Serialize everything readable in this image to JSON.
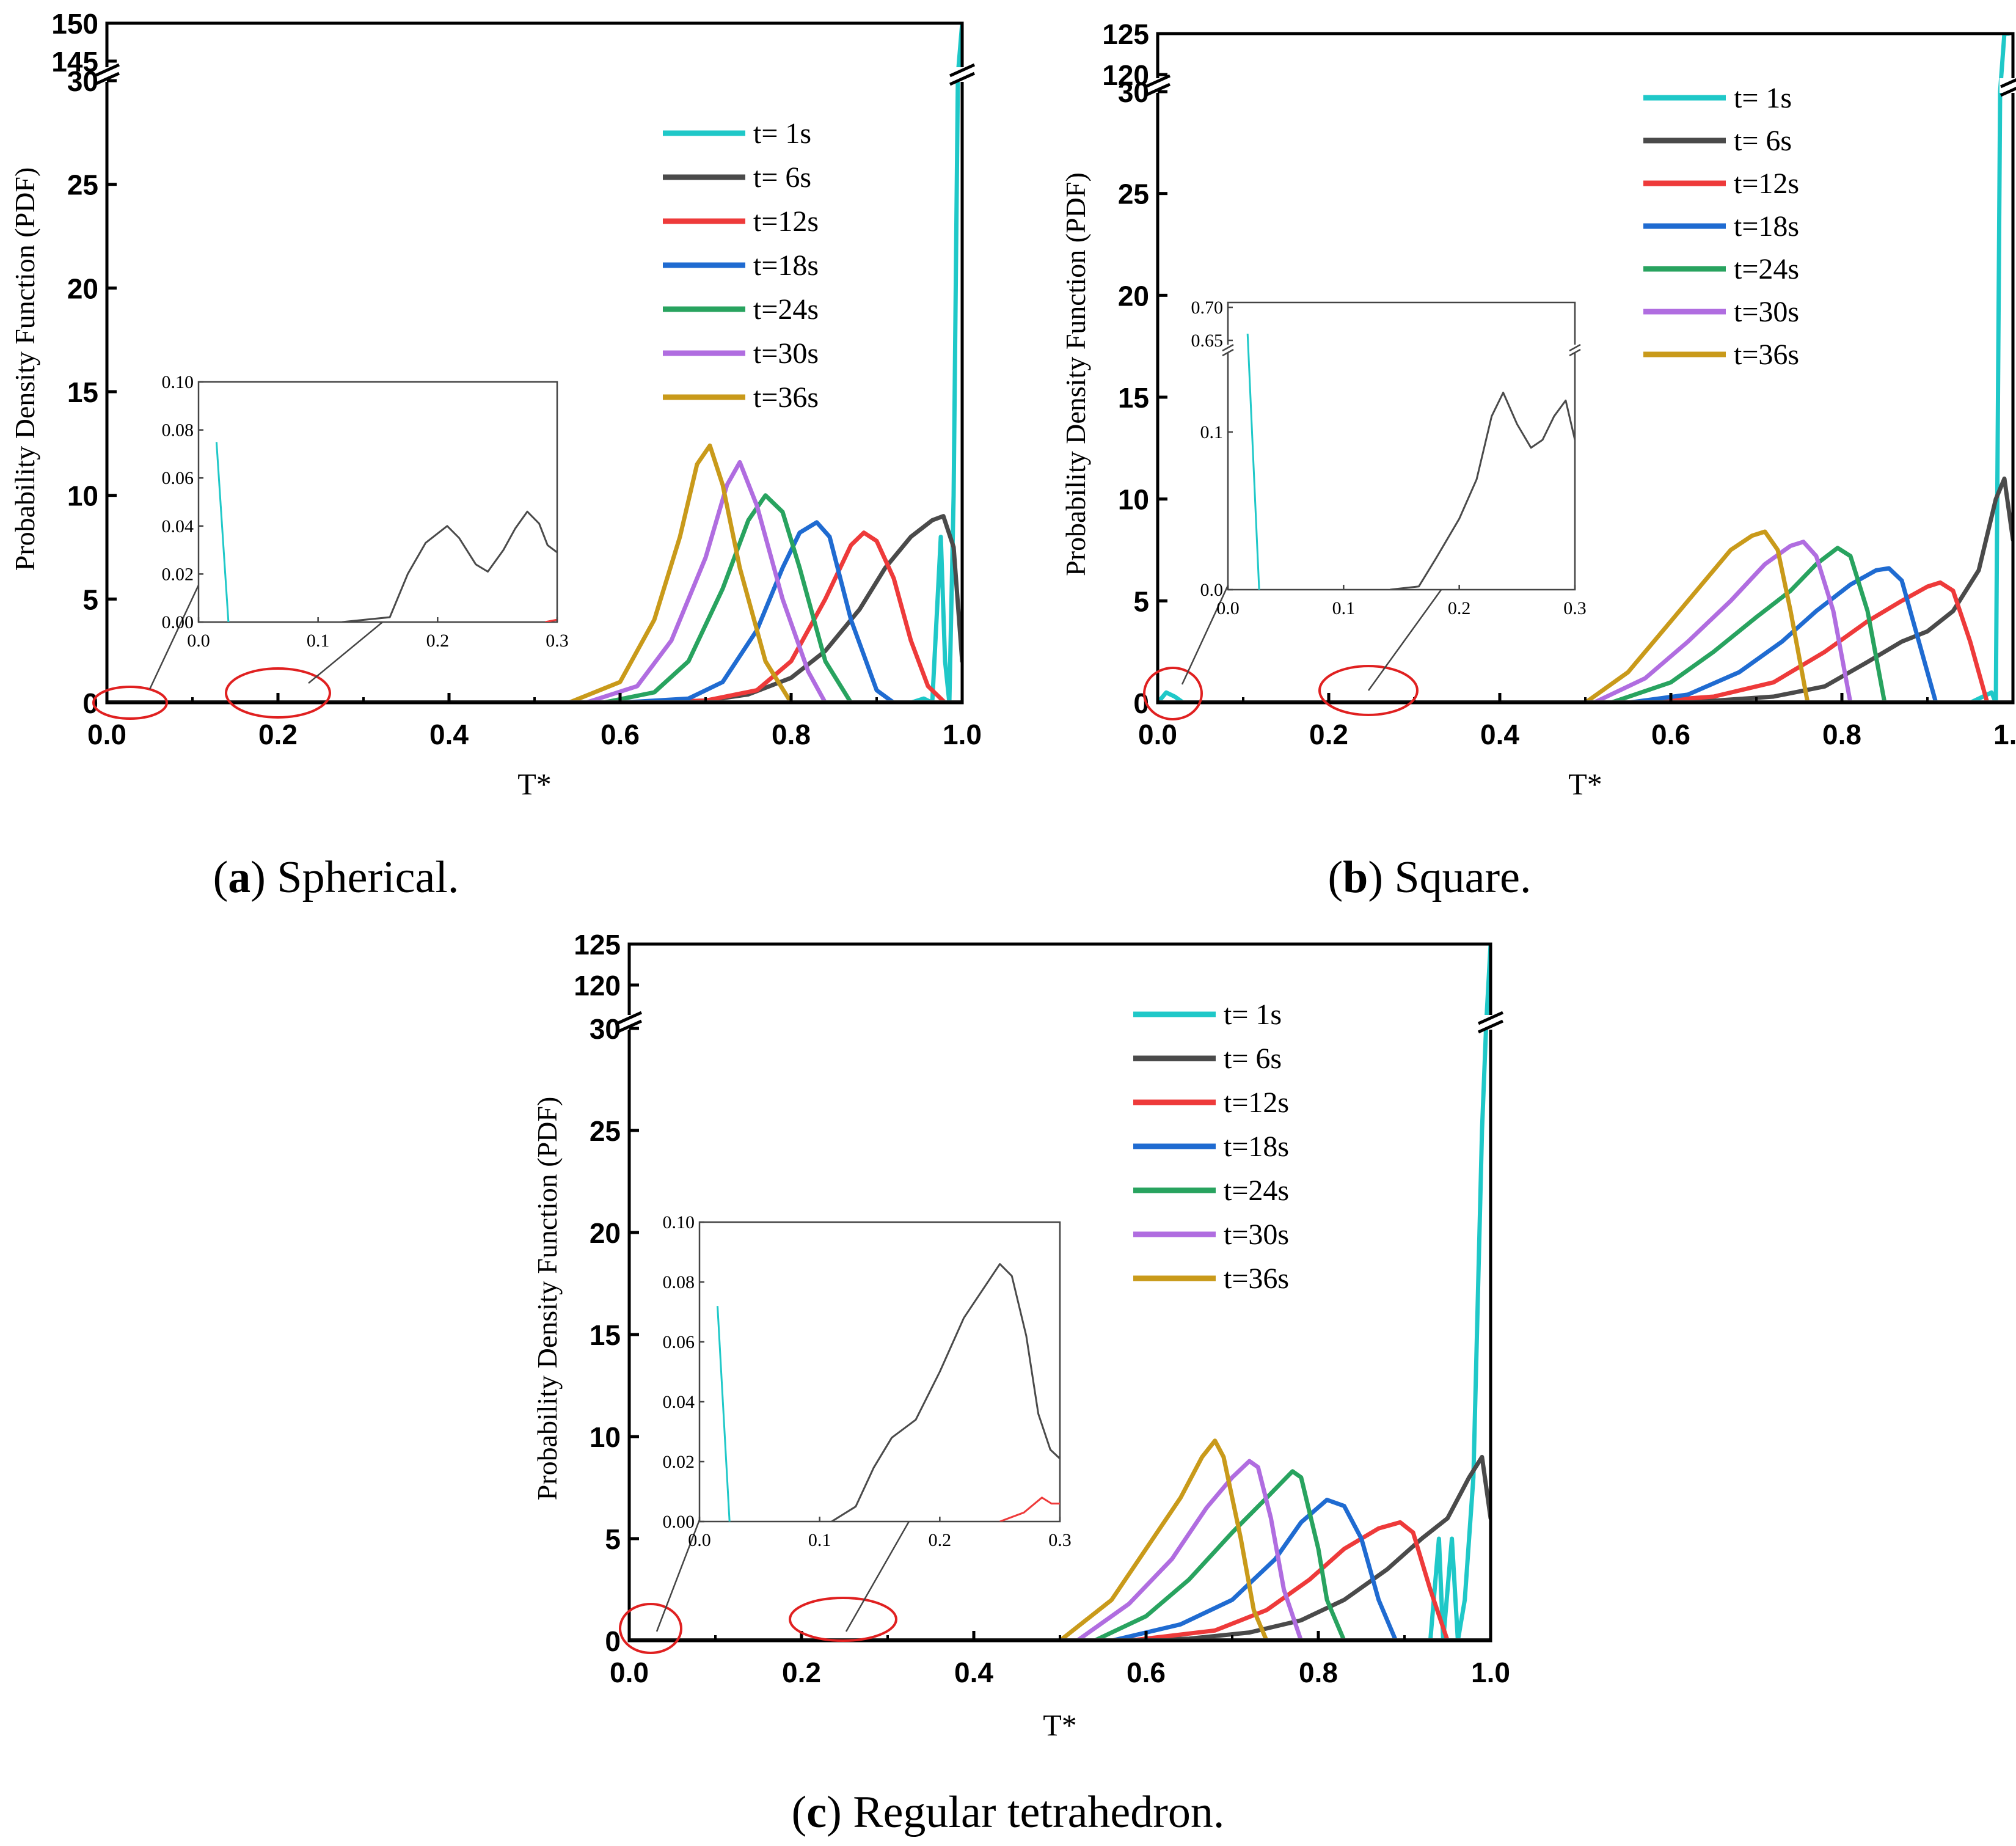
{
  "legend_labels": [
    "t=  1s",
    "t=  6s",
    "t=12s",
    "t=18s",
    "t=24s",
    "t=30s",
    "t=36s"
  ],
  "chart_data": [
    {
      "type": "line",
      "panel": "a",
      "caption_letter": "a",
      "caption_text": " Spherical.",
      "xlabel": "T*",
      "ylabel": "Probability Density Function (PDF)",
      "xlim": [
        0,
        1
      ],
      "ylim_lower": [
        0,
        30
      ],
      "ylim_upper": [
        145,
        150
      ],
      "xticks": [
        "0.0",
        "0.2",
        "0.4",
        "0.6",
        "0.8",
        "1.0"
      ],
      "yticks_lower": [
        "0",
        "5",
        "10",
        "15",
        "20",
        "25",
        "30"
      ],
      "yticks_upper": [
        "145",
        "150"
      ],
      "series": [
        {
          "name": "t=  1s",
          "color": "#1fc8c8",
          "x": [
            0.9,
            0.94,
            0.955,
            0.965,
            0.975,
            0.98,
            0.985,
            0.99,
            0.995,
            1.0
          ],
          "y": [
            0,
            0,
            0.2,
            0,
            8,
            2,
            0,
            10,
            40,
            150
          ]
        },
        {
          "name": "t=  6s",
          "color": "#4a4a4a",
          "x": [
            0.6,
            0.7,
            0.75,
            0.8,
            0.84,
            0.88,
            0.91,
            0.94,
            0.965,
            0.978,
            0.99,
            1.0
          ],
          "y": [
            0,
            0.1,
            0.4,
            1.2,
            2.5,
            4.5,
            6.5,
            8.0,
            8.8,
            9.0,
            7.5,
            2.0
          ]
        },
        {
          "name": "t=12s",
          "color": "#ee3a3a",
          "x": [
            0.6,
            0.7,
            0.76,
            0.8,
            0.84,
            0.87,
            0.885,
            0.9,
            0.92,
            0.94,
            0.96,
            0.98
          ],
          "y": [
            0,
            0.1,
            0.6,
            2.0,
            5.0,
            7.6,
            8.2,
            7.8,
            6.0,
            3.0,
            0.8,
            0
          ]
        },
        {
          "name": "t=18s",
          "color": "#1f6bd1",
          "x": [
            0.6,
            0.68,
            0.72,
            0.76,
            0.79,
            0.81,
            0.83,
            0.845,
            0.87,
            0.9,
            0.92
          ],
          "y": [
            0,
            0.2,
            1.0,
            3.5,
            6.5,
            8.2,
            8.7,
            8.0,
            4.0,
            0.6,
            0
          ]
        },
        {
          "name": "t=24s",
          "color": "#28a35f",
          "x": [
            0.58,
            0.64,
            0.68,
            0.72,
            0.75,
            0.77,
            0.79,
            0.81,
            0.84,
            0.87
          ],
          "y": [
            0,
            0.5,
            2.0,
            5.5,
            8.8,
            10.0,
            9.2,
            6.5,
            2.0,
            0
          ]
        },
        {
          "name": "t=30s",
          "color": "#b06de0",
          "x": [
            0.56,
            0.62,
            0.66,
            0.7,
            0.725,
            0.74,
            0.76,
            0.79,
            0.82,
            0.84
          ],
          "y": [
            0,
            0.8,
            3.0,
            7.0,
            10.5,
            11.6,
            9.5,
            5.0,
            1.5,
            0
          ]
        },
        {
          "name": "t=36s",
          "color": "#c99a1a",
          "x": [
            0.54,
            0.6,
            0.64,
            0.67,
            0.69,
            0.705,
            0.72,
            0.74,
            0.77,
            0.8
          ],
          "y": [
            0,
            1.0,
            4.0,
            8.0,
            11.5,
            12.4,
            10.5,
            6.5,
            2.0,
            0
          ]
        }
      ],
      "inset": {
        "xlim": [
          0,
          0.3
        ],
        "ylim": [
          0,
          0.1
        ],
        "xticks": [
          "0.0",
          "0.1",
          "0.2",
          "0.3"
        ],
        "yticks": [
          "0.00",
          "0.02",
          "0.04",
          "0.06",
          "0.08",
          "0.10"
        ],
        "series": [
          {
            "color": "#1fc8c8",
            "x": [
              0.015,
              0.025
            ],
            "y": [
              0.075,
              0.0
            ]
          },
          {
            "color": "#4a4a4a",
            "x": [
              0.12,
              0.16,
              0.175,
              0.19,
              0.208,
              0.218,
              0.232,
              0.242,
              0.255,
              0.265,
              0.275,
              0.285,
              0.292,
              0.3
            ],
            "y": [
              0,
              0.002,
              0.02,
              0.033,
              0.04,
              0.035,
              0.024,
              0.021,
              0.03,
              0.039,
              0.046,
              0.041,
              0.032,
              0.029
            ]
          },
          {
            "color": "#ee3a3a",
            "x": [
              0.29,
              0.3
            ],
            "y": [
              0,
              0.001
            ]
          }
        ]
      }
    },
    {
      "type": "line",
      "panel": "b",
      "caption_letter": "b",
      "caption_text": " Square.",
      "xlabel": "T*",
      "ylabel": "Probability Density Function (PDF)",
      "xlim": [
        0,
        1
      ],
      "ylim_lower": [
        0,
        30
      ],
      "ylim_upper": [
        120,
        125
      ],
      "xticks": [
        "0.0",
        "0.2",
        "0.4",
        "0.6",
        "0.8",
        "1.0"
      ],
      "yticks_lower": [
        "0",
        "5",
        "10",
        "15",
        "20",
        "25",
        "30"
      ],
      "yticks_upper": [
        "120",
        "125"
      ],
      "series": [
        {
          "name": "t=  1s",
          "color": "#1fc8c8",
          "x": [
            0.0,
            0.01,
            0.02,
            0.03,
            0.95,
            0.975,
            0.98,
            0.985,
            0.99,
            0.995
          ],
          "y": [
            0,
            0.5,
            0.3,
            0,
            0,
            0.5,
            0,
            30,
            125,
            125
          ]
        },
        {
          "name": "t=  6s",
          "color": "#4a4a4a",
          "x": [
            0.55,
            0.65,
            0.72,
            0.78,
            0.83,
            0.87,
            0.9,
            0.93,
            0.96,
            0.98,
            0.99,
            1.0
          ],
          "y": [
            0,
            0.1,
            0.3,
            0.8,
            2.0,
            3.0,
            3.5,
            4.5,
            6.5,
            10.0,
            11.0,
            8.0
          ]
        },
        {
          "name": "t=12s",
          "color": "#ee3a3a",
          "x": [
            0.55,
            0.65,
            0.72,
            0.78,
            0.83,
            0.87,
            0.9,
            0.915,
            0.93,
            0.95,
            0.97
          ],
          "y": [
            0,
            0.3,
            1.0,
            2.5,
            4.0,
            5.0,
            5.7,
            5.9,
            5.5,
            3.0,
            0
          ]
        },
        {
          "name": "t=18s",
          "color": "#1f6bd1",
          "x": [
            0.55,
            0.62,
            0.68,
            0.73,
            0.77,
            0.81,
            0.84,
            0.855,
            0.87,
            0.89,
            0.91
          ],
          "y": [
            0,
            0.4,
            1.5,
            3.0,
            4.5,
            5.8,
            6.5,
            6.6,
            6.0,
            3.0,
            0
          ]
        },
        {
          "name": "t=24s",
          "color": "#28a35f",
          "x": [
            0.53,
            0.6,
            0.65,
            0.7,
            0.74,
            0.77,
            0.795,
            0.81,
            0.83,
            0.85
          ],
          "y": [
            0,
            1.0,
            2.5,
            4.2,
            5.5,
            6.8,
            7.6,
            7.2,
            4.5,
            0
          ]
        },
        {
          "name": "t=30s",
          "color": "#b06de0",
          "x": [
            0.51,
            0.57,
            0.62,
            0.67,
            0.71,
            0.74,
            0.755,
            0.77,
            0.79,
            0.81
          ],
          "y": [
            0,
            1.2,
            3.0,
            5.0,
            6.8,
            7.7,
            7.9,
            7.2,
            4.5,
            0
          ]
        },
        {
          "name": "t=36s",
          "color": "#c99a1a",
          "x": [
            0.5,
            0.55,
            0.6,
            0.64,
            0.67,
            0.695,
            0.71,
            0.725,
            0.74,
            0.76
          ],
          "y": [
            0,
            1.5,
            4.0,
            6.0,
            7.5,
            8.2,
            8.4,
            7.5,
            4.5,
            0
          ]
        }
      ],
      "inset": {
        "xlim": [
          0,
          0.3
        ],
        "ylim_lower": [
          0,
          0.15
        ],
        "ylim_upper": [
          0.65,
          0.7
        ],
        "xticks": [
          "0.0",
          "0.1",
          "0.2",
          "0.3"
        ],
        "yticks_lower": [
          "0.0",
          "0.1"
        ],
        "yticks_upper": [
          "0.65",
          "0.70"
        ],
        "series": [
          {
            "color": "#1fc8c8",
            "x": [
              0.017,
              0.027
            ],
            "y": [
              0.66,
              0.0
            ]
          },
          {
            "color": "#4a4a4a",
            "x": [
              0.14,
              0.165,
              0.18,
              0.2,
              0.215,
              0.228,
              0.238,
              0.25,
              0.262,
              0.272,
              0.282,
              0.292,
              0.3
            ],
            "y": [
              0,
              0.002,
              0.02,
              0.045,
              0.07,
              0.11,
              0.125,
              0.105,
              0.09,
              0.095,
              0.11,
              0.12,
              0.095
            ]
          }
        ]
      }
    },
    {
      "type": "line",
      "panel": "c",
      "caption_letter": "c",
      "caption_text": " Regular tetrahedron.",
      "xlabel": "T*",
      "ylabel": "Probability Density Function (PDF)",
      "xlim": [
        0,
        1
      ],
      "ylim_lower": [
        0,
        30
      ],
      "ylim_upper": [
        120,
        125
      ],
      "xticks": [
        "0.0",
        "0.2",
        "0.4",
        "0.6",
        "0.8",
        "1.0"
      ],
      "yticks_lower": [
        "0",
        "5",
        "10",
        "15",
        "20",
        "25",
        "30"
      ],
      "yticks_upper": [
        "120",
        "125"
      ],
      "series": [
        {
          "name": "t=  1s",
          "color": "#1fc8c8",
          "x": [
            0.91,
            0.93,
            0.94,
            0.945,
            0.955,
            0.962,
            0.97,
            0.98,
            0.99,
            0.995,
            1.0
          ],
          "y": [
            0,
            0,
            5,
            0,
            5,
            0,
            2,
            8,
            25,
            60,
            125
          ]
        },
        {
          "name": "t=  6s",
          "color": "#4a4a4a",
          "x": [
            0.55,
            0.65,
            0.72,
            0.78,
            0.83,
            0.88,
            0.92,
            0.95,
            0.975,
            0.99,
            1.0
          ],
          "y": [
            0,
            0.1,
            0.4,
            1.0,
            2.0,
            3.5,
            5.0,
            6.0,
            8.0,
            9.0,
            6.0
          ]
        },
        {
          "name": "t=12s",
          "color": "#ee3a3a",
          "x": [
            0.58,
            0.68,
            0.74,
            0.79,
            0.83,
            0.87,
            0.895,
            0.91,
            0.93,
            0.95
          ],
          "y": [
            0,
            0.5,
            1.5,
            3.0,
            4.5,
            5.5,
            5.8,
            5.3,
            2.5,
            0
          ]
        },
        {
          "name": "t=18s",
          "color": "#1f6bd1",
          "x": [
            0.56,
            0.64,
            0.7,
            0.75,
            0.78,
            0.81,
            0.83,
            0.85,
            0.87,
            0.89
          ],
          "y": [
            0,
            0.8,
            2.0,
            4.0,
            5.8,
            6.9,
            6.6,
            5.0,
            2.0,
            0
          ]
        },
        {
          "name": "t=24s",
          "color": "#28a35f",
          "x": [
            0.54,
            0.6,
            0.65,
            0.7,
            0.74,
            0.77,
            0.78,
            0.8,
            0.81,
            0.83
          ],
          "y": [
            0,
            1.2,
            3.0,
            5.3,
            7.0,
            8.3,
            8.0,
            4.5,
            2.0,
            0
          ]
        },
        {
          "name": "t=30s",
          "color": "#b06de0",
          "x": [
            0.52,
            0.58,
            0.63,
            0.67,
            0.7,
            0.72,
            0.73,
            0.745,
            0.76,
            0.78
          ],
          "y": [
            0,
            1.8,
            4.0,
            6.5,
            8.0,
            8.8,
            8.5,
            6.0,
            2.5,
            0
          ]
        },
        {
          "name": "t=36s",
          "color": "#c99a1a",
          "x": [
            0.5,
            0.56,
            0.6,
            0.64,
            0.665,
            0.68,
            0.69,
            0.71,
            0.725,
            0.74
          ],
          "y": [
            0,
            2.0,
            4.5,
            7.0,
            9.0,
            9.8,
            9.0,
            5.0,
            1.5,
            0
          ]
        }
      ],
      "inset": {
        "xlim": [
          0,
          0.3
        ],
        "ylim": [
          0,
          0.1
        ],
        "xticks": [
          "0.0",
          "0.1",
          "0.2",
          "0.3"
        ],
        "yticks": [
          "0.00",
          "0.02",
          "0.04",
          "0.06",
          "0.08",
          "0.10"
        ],
        "series": [
          {
            "color": "#1fc8c8",
            "x": [
              0.015,
              0.025
            ],
            "y": [
              0.072,
              0.0
            ]
          },
          {
            "color": "#4a4a4a",
            "x": [
              0.11,
              0.13,
              0.145,
              0.16,
              0.18,
              0.2,
              0.22,
              0.235,
              0.25,
              0.26,
              0.272,
              0.282,
              0.292,
              0.3
            ],
            "y": [
              0,
              0.005,
              0.018,
              0.028,
              0.034,
              0.05,
              0.068,
              0.077,
              0.086,
              0.082,
              0.062,
              0.036,
              0.024,
              0.021
            ]
          },
          {
            "color": "#ee3a3a",
            "x": [
              0.25,
              0.27,
              0.285,
              0.293,
              0.3
            ],
            "y": [
              0,
              0.003,
              0.008,
              0.006,
              0.006
            ]
          }
        ]
      }
    }
  ]
}
